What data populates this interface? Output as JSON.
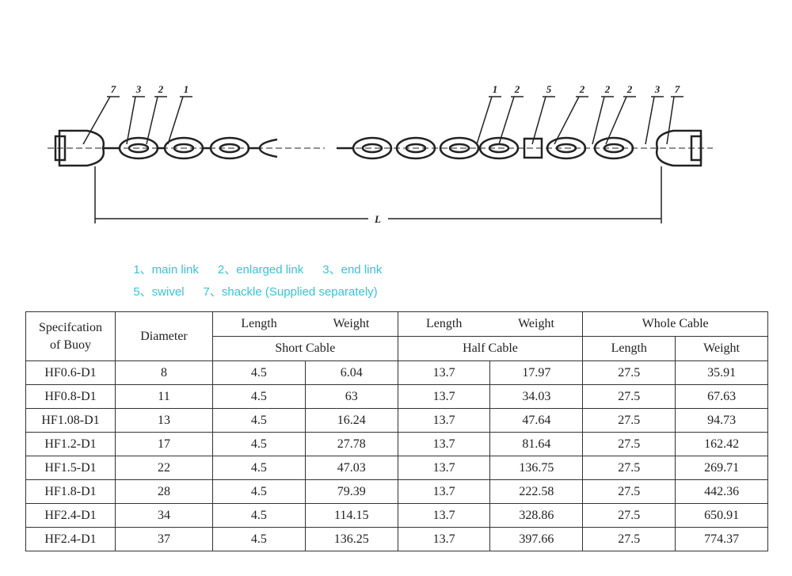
{
  "diagram": {
    "left_labels": [
      "7",
      "3",
      "2",
      "1"
    ],
    "right_labels": [
      "1",
      "2",
      "5",
      "2",
      "2",
      "2",
      "3",
      "7"
    ],
    "dimension_label": "L"
  },
  "legend": [
    "1、main link",
    "2、enlarged link",
    "3、end link",
    "5、swivel",
    "7、shackle (Supplied separately)"
  ],
  "table": {
    "header": {
      "specification": "Specifcation of Buoy",
      "diameter": "Diameter",
      "short_top": [
        "Length",
        "Weight"
      ],
      "short_cable": "Short Cable",
      "half_top": [
        "Length",
        "Weight"
      ],
      "half_cable": "Half Cable",
      "whole_cable": "Whole Cable",
      "whole_sub": [
        "Length",
        "Weight"
      ]
    },
    "rows": [
      [
        "HF0.6-D1",
        8,
        4.5,
        6.04,
        13.7,
        17.97,
        27.5,
        35.91
      ],
      [
        "HF0.8-D1",
        11,
        4.5,
        63,
        13.7,
        34.03,
        27.5,
        67.63
      ],
      [
        "HF1.08-D1",
        13,
        4.5,
        16.24,
        13.7,
        47.64,
        27.5,
        94.73
      ],
      [
        "HF1.2-D1",
        17,
        4.5,
        27.78,
        13.7,
        81.64,
        27.5,
        162.42
      ],
      [
        "HF1.5-D1",
        22,
        4.5,
        47.03,
        13.7,
        136.75,
        27.5,
        269.71
      ],
      [
        "HF1.8-D1",
        28,
        4.5,
        79.39,
        13.7,
        222.58,
        27.5,
        442.36
      ],
      [
        "HF2.4-D1",
        34,
        4.5,
        114.15,
        13.7,
        328.86,
        27.5,
        650.91
      ],
      [
        "HF2.4-D1",
        37,
        4.5,
        136.25,
        13.7,
        397.66,
        27.5,
        774.37
      ]
    ]
  }
}
